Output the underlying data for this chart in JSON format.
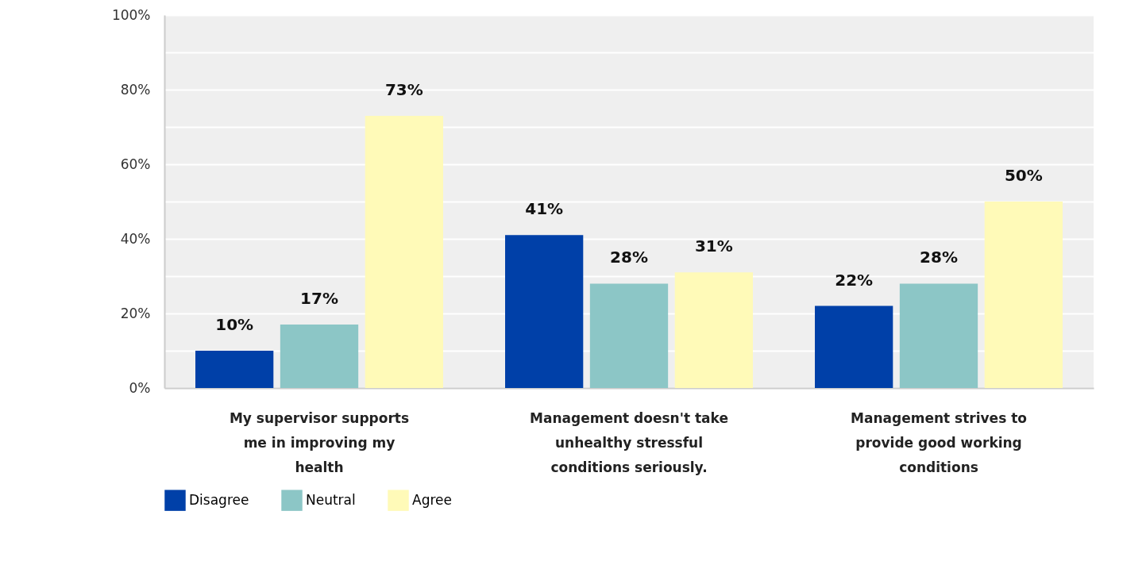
{
  "chart_data": {
    "type": "bar",
    "categories": [
      "My supervisor supports me in improving my health",
      "Management doesn't take unhealthy stressful conditions seriously.",
      "Management strives to provide good working conditions"
    ],
    "series": [
      {
        "name": "Disagree",
        "color": "#0040a8",
        "values": [
          10,
          41,
          22
        ],
        "value_labels": [
          "10%",
          "41%",
          "22%"
        ]
      },
      {
        "name": "Neutral",
        "color": "#8cc6c6",
        "values": [
          17,
          28,
          28
        ],
        "value_labels": [
          "17%",
          "28%",
          "28%"
        ]
      },
      {
        "name": "Agree",
        "color": "#fffab8",
        "values": [
          73,
          31,
          50
        ],
        "value_labels": [
          "73%",
          "31%",
          "50%"
        ]
      }
    ],
    "ylim": [
      0,
      100
    ],
    "yticks": [
      {
        "value": 0,
        "label": "0%"
      },
      {
        "value": 10,
        "label": null
      },
      {
        "value": 20,
        "label": "20%"
      },
      {
        "value": 30,
        "label": null
      },
      {
        "value": 40,
        "label": "40%"
      },
      {
        "value": 50,
        "label": null
      },
      {
        "value": 60,
        "label": "60%"
      },
      {
        "value": 70,
        "label": null
      },
      {
        "value": 80,
        "label": "80%"
      },
      {
        "value": 90,
        "label": null
      },
      {
        "value": 100,
        "label": "100%"
      }
    ],
    "grid": "y",
    "legend": "bottom left"
  }
}
